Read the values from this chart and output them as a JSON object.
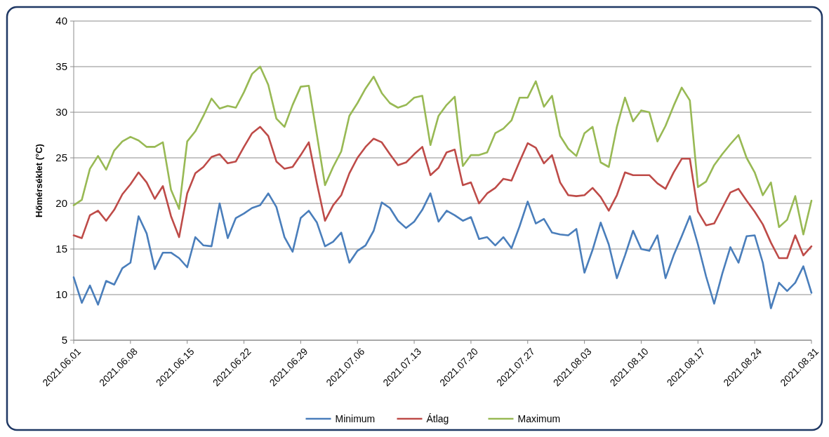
{
  "chart_data": {
    "type": "line",
    "ylabel": "Hőmérséklet (°C)",
    "x": [
      "2021-06-01",
      "2021-06-02",
      "2021-06-03",
      "2021-06-04",
      "2021-06-05",
      "2021-06-06",
      "2021-06-07",
      "2021-06-08",
      "2021-06-09",
      "2021-06-10",
      "2021-06-11",
      "2021-06-12",
      "2021-06-13",
      "2021-06-14",
      "2021-06-15",
      "2021-06-16",
      "2021-06-17",
      "2021-06-18",
      "2021-06-19",
      "2021-06-20",
      "2021-06-21",
      "2021-06-22",
      "2021-06-23",
      "2021-06-24",
      "2021-06-25",
      "2021-06-26",
      "2021-06-27",
      "2021-06-28",
      "2021-06-29",
      "2021-06-30",
      "2021-07-01",
      "2021-07-02",
      "2021-07-03",
      "2021-07-04",
      "2021-07-05",
      "2021-07-06",
      "2021-07-07",
      "2021-07-08",
      "2021-07-09",
      "2021-07-10",
      "2021-07-11",
      "2021-07-12",
      "2021-07-13",
      "2021-07-14",
      "2021-07-15",
      "2021-07-16",
      "2021-07-17",
      "2021-07-18",
      "2021-07-19",
      "2021-07-20",
      "2021-07-21",
      "2021-07-22",
      "2021-07-23",
      "2021-07-24",
      "2021-07-25",
      "2021-07-26",
      "2021-07-27",
      "2021-07-28",
      "2021-07-29",
      "2021-07-30",
      "2021-07-31",
      "2021-08-01",
      "2021-08-02",
      "2021-08-03",
      "2021-08-04",
      "2021-08-05",
      "2021-08-06",
      "2021-08-07",
      "2021-08-08",
      "2021-08-09",
      "2021-08-10",
      "2021-08-11",
      "2021-08-12",
      "2021-08-13",
      "2021-08-14",
      "2021-08-15",
      "2021-08-16",
      "2021-08-17",
      "2021-08-18",
      "2021-08-19",
      "2021-08-20",
      "2021-08-21",
      "2021-08-22",
      "2021-08-23",
      "2021-08-24",
      "2021-08-25",
      "2021-08-26",
      "2021-08-27",
      "2021-08-28",
      "2021-08-29",
      "2021-08-30",
      "2021-08-31"
    ],
    "series": [
      {
        "name": "Minimum",
        "color": "#4a7ebb",
        "values": [
          11.9,
          9.1,
          11.0,
          8.9,
          11.5,
          11.1,
          12.9,
          13.5,
          18.6,
          16.7,
          12.8,
          14.6,
          14.6,
          14.0,
          13.0,
          16.3,
          15.4,
          15.3,
          20.0,
          16.2,
          18.4,
          18.9,
          19.5,
          19.8,
          21.1,
          19.6,
          16.3,
          14.7,
          18.4,
          19.2,
          17.9,
          15.3,
          15.8,
          16.8,
          13.5,
          14.8,
          15.4,
          17.0,
          20.1,
          19.5,
          18.1,
          17.3,
          18.0,
          19.3,
          21.1,
          18.0,
          19.2,
          18.7,
          18.1,
          18.5,
          16.1,
          16.3,
          15.4,
          16.3,
          15.1,
          17.5,
          20.2,
          17.8,
          18.3,
          16.8,
          16.6,
          16.5,
          17.2,
          12.4,
          14.9,
          17.9,
          15.5,
          11.8,
          14.3,
          17.0,
          15.0,
          14.8,
          16.5,
          11.8,
          14.3,
          16.4,
          18.6,
          15.5,
          12.0,
          9.0,
          12.3,
          15.2,
          13.5,
          16.4,
          16.5,
          13.5,
          8.5,
          11.3,
          10.4,
          11.3,
          13.1,
          10.2
        ]
      },
      {
        "name": "Átlag",
        "color": "#be4b48",
        "values": [
          16.5,
          16.2,
          18.7,
          19.2,
          18.1,
          19.3,
          21.0,
          22.1,
          23.4,
          22.3,
          20.5,
          21.9,
          18.6,
          16.3,
          21.1,
          23.3,
          24.0,
          25.1,
          25.4,
          24.4,
          24.6,
          26.2,
          27.7,
          28.4,
          27.4,
          24.6,
          23.8,
          24.0,
          25.3,
          26.7,
          22.2,
          18.1,
          19.8,
          20.9,
          23.3,
          25.0,
          26.2,
          27.1,
          26.7,
          25.4,
          24.2,
          24.5,
          25.4,
          26.2,
          23.1,
          23.9,
          25.6,
          25.9,
          22.0,
          22.3,
          20.0,
          21.1,
          21.7,
          22.7,
          22.5,
          24.6,
          26.6,
          26.1,
          24.4,
          25.3,
          22.3,
          20.9,
          20.8,
          20.9,
          21.7,
          20.7,
          19.2,
          20.9,
          23.4,
          23.1,
          23.1,
          23.1,
          22.2,
          21.6,
          23.4,
          24.9,
          24.9,
          19.1,
          17.6,
          17.8,
          19.5,
          21.2,
          21.6,
          20.3,
          19.1,
          17.7,
          15.7,
          14.0,
          14.0,
          16.5,
          14.3,
          15.3
        ]
      },
      {
        "name": "Maximum",
        "color": "#98b954",
        "values": [
          19.8,
          20.4,
          23.8,
          25.2,
          23.7,
          25.8,
          26.8,
          27.3,
          26.9,
          26.2,
          26.2,
          26.7,
          21.5,
          19.4,
          26.8,
          27.9,
          29.6,
          31.5,
          30.4,
          30.7,
          30.5,
          32.2,
          34.2,
          35.0,
          33.0,
          29.3,
          28.4,
          30.8,
          32.8,
          32.9,
          27.5,
          22.0,
          24.0,
          25.7,
          29.6,
          31.0,
          32.6,
          33.9,
          32.1,
          31.0,
          30.5,
          30.8,
          31.6,
          31.8,
          26.4,
          29.6,
          30.8,
          31.7,
          24.1,
          25.3,
          25.3,
          25.6,
          27.7,
          28.2,
          29.1,
          31.6,
          31.6,
          33.4,
          30.6,
          31.8,
          27.4,
          26.0,
          25.2,
          27.7,
          28.4,
          24.5,
          24.0,
          28.4,
          31.6,
          29.0,
          30.2,
          30.0,
          26.8,
          28.5,
          30.7,
          32.7,
          31.3,
          21.8,
          22.4,
          24.2,
          25.4,
          26.5,
          27.5,
          25.0,
          23.4,
          20.9,
          22.3,
          17.4,
          18.2,
          20.8,
          16.6,
          20.3
        ]
      }
    ],
    "xlim": [
      "2021-06-01",
      "2021-08-31"
    ],
    "xticks": [
      {
        "value": "2021-06-01",
        "label": "2021.06.01"
      },
      {
        "value": "2021-06-08",
        "label": "2021.06.08"
      },
      {
        "value": "2021-06-15",
        "label": "2021.06.15"
      },
      {
        "value": "2021-06-22",
        "label": "2021.06.22"
      },
      {
        "value": "2021-06-29",
        "label": "2021.06.29"
      },
      {
        "value": "2021-07-06",
        "label": "2021.07.06"
      },
      {
        "value": "2021-07-13",
        "label": "2021.07.13"
      },
      {
        "value": "2021-07-20",
        "label": "2021.07.20"
      },
      {
        "value": "2021-07-27",
        "label": "2021.07.27"
      },
      {
        "value": "2021-08-03",
        "label": "2021.08.03"
      },
      {
        "value": "2021-08-10",
        "label": "2021.08.10"
      },
      {
        "value": "2021-08-17",
        "label": "2021.08.17"
      },
      {
        "value": "2021-08-24",
        "label": "2021.08.24"
      },
      {
        "value": "2021-08-31",
        "label": "2021.08.31"
      }
    ],
    "ylim": [
      5,
      40
    ],
    "yticks": [
      5,
      10,
      15,
      20,
      25,
      30,
      35,
      40
    ],
    "grid": "y",
    "legend": "bottom",
    "marker": "none",
    "line_style": "solid"
  }
}
